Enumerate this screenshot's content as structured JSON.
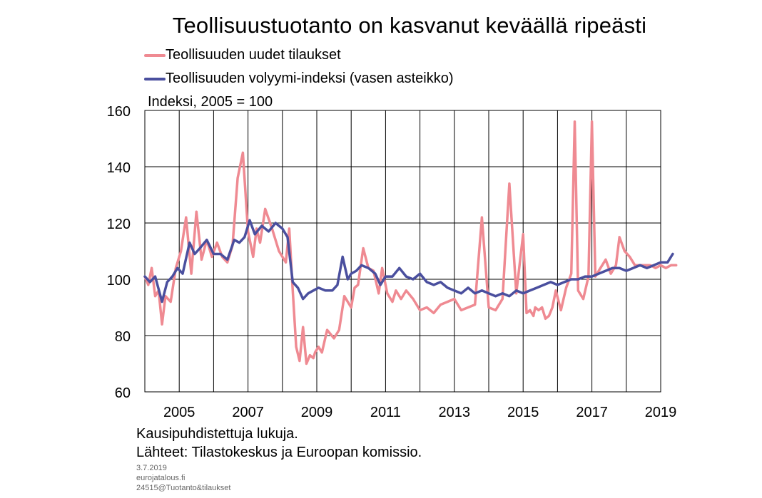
{
  "title": "Teollisuustuotanto on kasvanut keväällä ripeästi",
  "legend": [
    {
      "label": "Teollisuuden uudet tilaukset",
      "color": "#ef8a92"
    },
    {
      "label": "Teollisuuden volyymi-indeksi (vasen asteikko)",
      "color": "#4a4f9e"
    }
  ],
  "unit_label": "Indeksi,  2005 = 100",
  "footnote": "Kausipuhdistettuja  lukuja.",
  "source": "Lähteet: Tilastokeskus ja Euroopan komissio.",
  "date": "3.7.2019",
  "site": "eurojatalous.fi",
  "code": "24515@Tuotanto&tilaukset",
  "chart_data": {
    "type": "line",
    "title": "Teollisuustuotanto on kasvanut keväällä ripeästi",
    "ylabel": "Indeksi,  2005 = 100",
    "xlim": [
      2004.0,
      2019.0
    ],
    "ylim": [
      60,
      160
    ],
    "yticks": [
      60,
      80,
      100,
      120,
      140,
      160
    ],
    "xticks": [
      2005,
      2007,
      2009,
      2011,
      2013,
      2015,
      2017,
      2019
    ],
    "xtick_labels": [
      "2005",
      "2007",
      "2009",
      "2011",
      "2013",
      "2015",
      "2017",
      "2019"
    ],
    "grid": true,
    "legend_position": "top",
    "series": [
      {
        "name": "Teollisuuden uudet tilaukset",
        "color": "#ef8a92",
        "x": [
          2004.0,
          2004.1,
          2004.2,
          2004.3,
          2004.4,
          2004.5,
          2004.6,
          2004.75,
          2004.9,
          2005.05,
          2005.2,
          2005.35,
          2005.5,
          2005.65,
          2005.8,
          2005.95,
          2006.1,
          2006.25,
          2006.4,
          2006.55,
          2006.7,
          2006.85,
          2007.0,
          2007.15,
          2007.25,
          2007.35,
          2007.5,
          2007.7,
          2007.9,
          2008.0,
          2008.1,
          2008.2,
          2008.3,
          2008.4,
          2008.5,
          2008.6,
          2008.7,
          2008.8,
          2008.9,
          2008.95,
          2009.05,
          2009.15,
          2009.3,
          2009.5,
          2009.65,
          2009.8,
          2009.9,
          2010.0,
          2010.1,
          2010.2,
          2010.35,
          2010.5,
          2010.65,
          2010.8,
          2010.9,
          2011.05,
          2011.2,
          2011.3,
          2011.45,
          2011.6,
          2011.8,
          2012.0,
          2012.2,
          2012.4,
          2012.6,
          2012.8,
          2013.0,
          2013.2,
          2013.4,
          2013.6,
          2013.8,
          2014.0,
          2014.2,
          2014.4,
          2014.6,
          2014.8,
          2015.0,
          2015.1,
          2015.2,
          2015.3,
          2015.35,
          2015.45,
          2015.55,
          2015.65,
          2015.75,
          2015.85,
          2015.95,
          2016.1,
          2016.25,
          2016.4,
          2016.5,
          2016.6,
          2016.75,
          2016.9,
          2017.0,
          2017.1,
          2017.25,
          2017.4,
          2017.55,
          2017.7,
          2017.8,
          2017.95,
          2018.1,
          2018.25,
          2018.4,
          2018.55,
          2018.7,
          2018.85,
          2019.0,
          2019.15,
          2019.3,
          2019.45
        ],
        "values": [
          101,
          98,
          104,
          94,
          96,
          84,
          94,
          92,
          104,
          110,
          122,
          102,
          124,
          107,
          114,
          108,
          113,
          108,
          106,
          112,
          136,
          145,
          117,
          108,
          118,
          113,
          125,
          118,
          110,
          108,
          106,
          118,
          96,
          76,
          71,
          83,
          70,
          73,
          72,
          74,
          76,
          74,
          82,
          79,
          82,
          94,
          92,
          90,
          97,
          98,
          111,
          104,
          103,
          95,
          104,
          95,
          92,
          96,
          93,
          96,
          93,
          89,
          90,
          88,
          91,
          92,
          93,
          89,
          90,
          91,
          122,
          90,
          89,
          93,
          134,
          95,
          116,
          88,
          89,
          87,
          90,
          89,
          90,
          86,
          87,
          90,
          96,
          89,
          97,
          102,
          156,
          96,
          93,
          101,
          156,
          101,
          104,
          107,
          102,
          105,
          115,
          110,
          108,
          105,
          105,
          105,
          105,
          104,
          105,
          104,
          105,
          105
        ]
      },
      {
        "name": "Teollisuuden volyymi-indeksi (vasen asteikko)",
        "color": "#4a4f9e",
        "x": [
          2004.0,
          2004.15,
          2004.3,
          2004.5,
          2004.65,
          2004.8,
          2004.95,
          2005.1,
          2005.3,
          2005.45,
          2005.6,
          2005.8,
          2006.0,
          2006.2,
          2006.4,
          2006.6,
          2006.75,
          2006.9,
          2007.05,
          2007.2,
          2007.4,
          2007.6,
          2007.8,
          2008.0,
          2008.15,
          2008.3,
          2008.45,
          2008.6,
          2008.75,
          2008.9,
          2009.05,
          2009.25,
          2009.45,
          2009.6,
          2009.75,
          2009.9,
          2010.0,
          2010.15,
          2010.3,
          2010.5,
          2010.7,
          2010.85,
          2011.0,
          2011.2,
          2011.4,
          2011.6,
          2011.8,
          2012.0,
          2012.2,
          2012.4,
          2012.6,
          2012.8,
          2013.0,
          2013.2,
          2013.4,
          2013.6,
          2013.8,
          2014.0,
          2014.2,
          2014.4,
          2014.6,
          2014.8,
          2015.0,
          2015.2,
          2015.4,
          2015.6,
          2015.8,
          2016.0,
          2016.2,
          2016.4,
          2016.6,
          2016.8,
          2017.0,
          2017.2,
          2017.4,
          2017.6,
          2017.8,
          2018.0,
          2018.2,
          2018.4,
          2018.6,
          2018.8,
          2019.0,
          2019.2,
          2019.35
        ],
        "values": [
          101,
          99,
          101,
          92,
          99,
          101,
          104,
          102,
          113,
          109,
          111,
          114,
          109,
          109,
          107,
          114,
          113,
          115,
          121,
          116,
          119,
          117,
          120,
          118,
          115,
          99,
          97,
          93,
          95,
          96,
          97,
          96,
          96,
          98,
          108,
          100,
          102,
          103,
          105,
          104,
          102,
          98,
          101,
          101,
          104,
          101,
          100,
          102,
          99,
          98,
          99,
          97,
          96,
          95,
          97,
          95,
          96,
          95,
          94,
          95,
          94,
          96,
          95,
          96,
          97,
          98,
          99,
          98,
          99,
          100,
          100,
          101,
          101,
          102,
          103,
          104,
          104,
          103,
          104,
          105,
          104,
          105,
          106,
          106,
          109
        ]
      }
    ]
  }
}
